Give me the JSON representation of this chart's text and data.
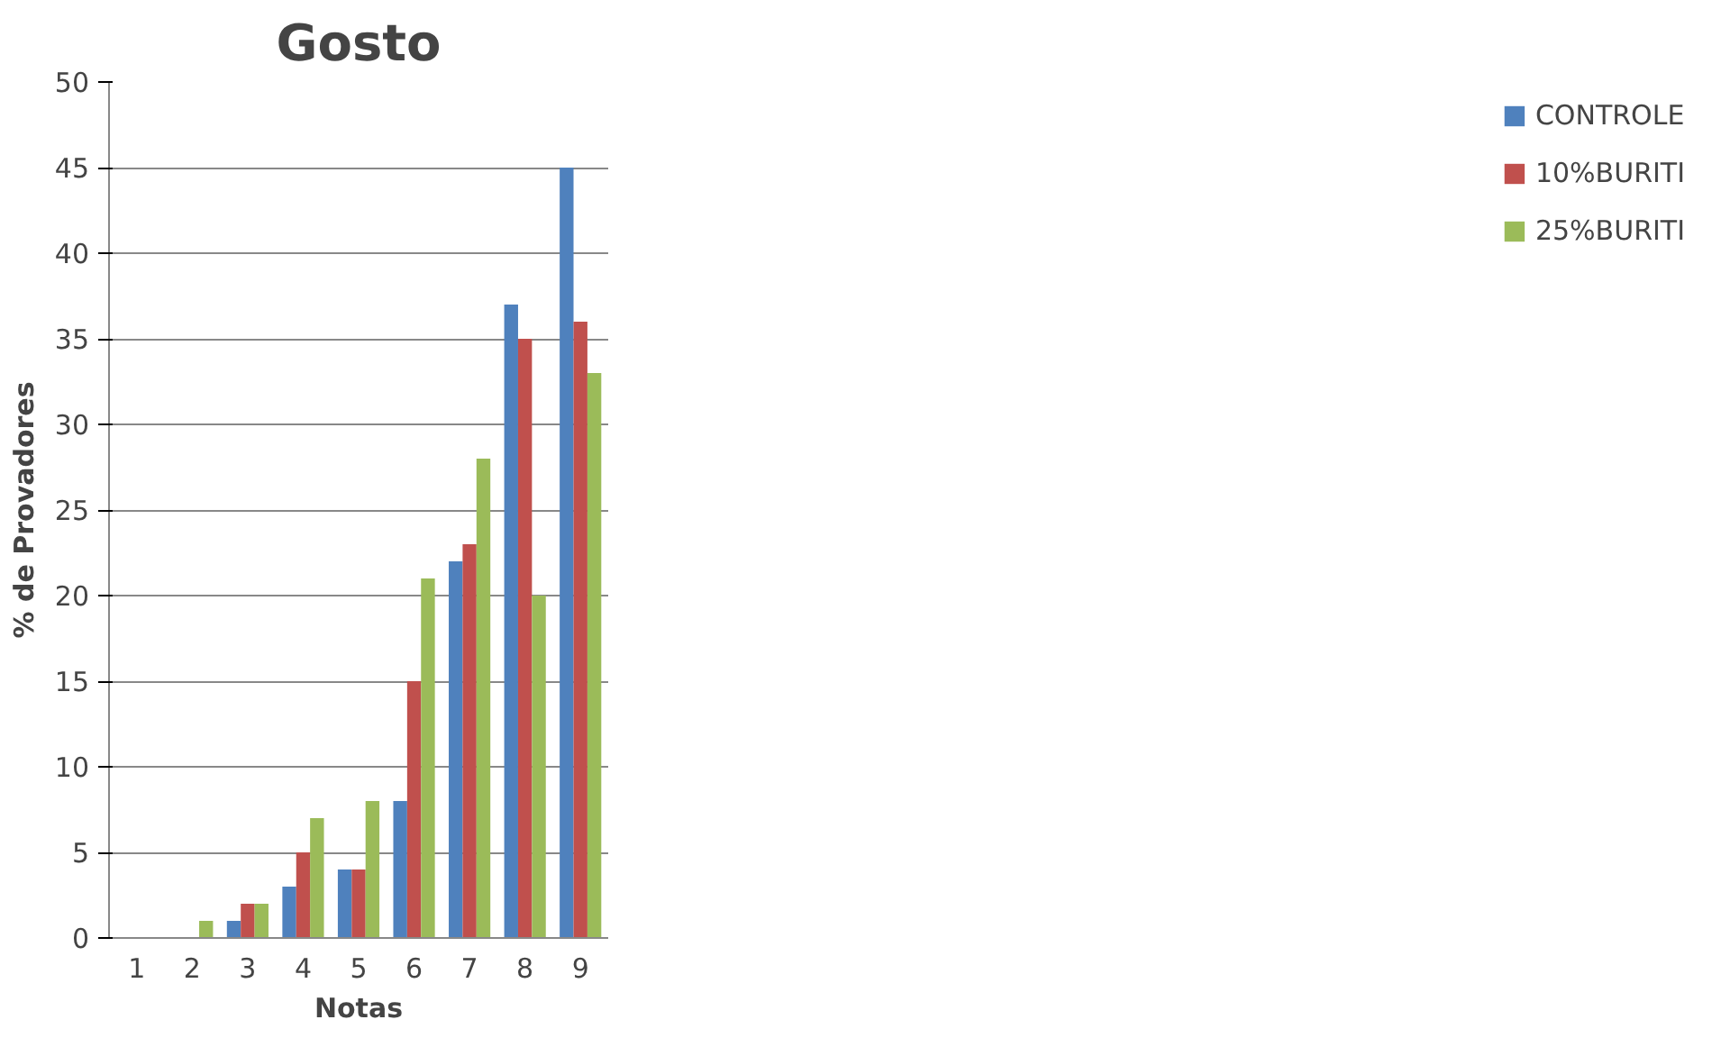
{
  "chart_data": {
    "type": "bar",
    "title": "Gosto",
    "xlabel": "Notas",
    "ylabel": "% de Provadores",
    "categories": [
      "1",
      "2",
      "3",
      "4",
      "5",
      "6",
      "7",
      "8",
      "9"
    ],
    "series": [
      {
        "name": "CONTROLE",
        "color": "#4f81bd",
        "values": [
          0,
          0,
          1,
          3,
          4,
          8,
          22,
          37,
          45
        ]
      },
      {
        "name": "10%BURITI",
        "color": "#c0504d",
        "values": [
          0,
          0,
          2,
          5,
          4,
          15,
          23,
          35,
          36
        ]
      },
      {
        "name": "25%BURITI",
        "color": "#9bbb59",
        "values": [
          0,
          1,
          2,
          7,
          8,
          21,
          28,
          20,
          33
        ]
      }
    ],
    "ylim": [
      0,
      50
    ],
    "yticks": [
      0,
      5,
      10,
      15,
      20,
      25,
      30,
      35,
      40,
      45,
      50
    ],
    "grid": "y",
    "legend": "right"
  }
}
